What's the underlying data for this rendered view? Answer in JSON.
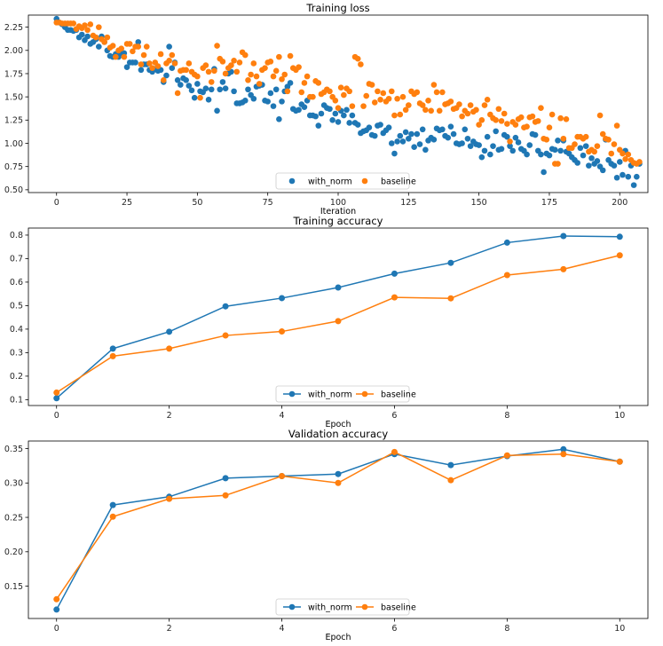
{
  "colors": {
    "with_norm": "#1f77b4",
    "baseline": "#ff7f0e",
    "frame": "#808080"
  },
  "chart_data": [
    {
      "type": "scatter",
      "title": "Training loss",
      "xlabel": "Iteration",
      "ylabel": "",
      "xlim": [
        -10,
        210
      ],
      "ylim": [
        0.47,
        2.38
      ],
      "xticks": [
        0,
        25,
        50,
        75,
        100,
        125,
        150,
        175,
        200
      ],
      "xtick_labels": [
        "0",
        "25",
        "50",
        "75",
        "100",
        "125",
        "150",
        "175",
        "200"
      ],
      "yticks": [
        0.5,
        0.75,
        1.0,
        1.25,
        1.5,
        1.75,
        2.0,
        2.25
      ],
      "ytick_labels": [
        "0.50",
        "0.75",
        "1.00",
        "1.25",
        "1.50",
        "1.75",
        "2.00",
        "2.25"
      ],
      "legend": {
        "placement": "lower-center",
        "entries": [
          "with_norm",
          "baseline"
        ]
      },
      "series": [
        {
          "name": "with_norm",
          "x_start": 0,
          "x_step": 1,
          "values": [
            2.34,
            2.3,
            2.28,
            2.25,
            2.22,
            2.22,
            2.21,
            2.22,
            2.14,
            2.17,
            2.11,
            2.15,
            2.07,
            2.09,
            2.12,
            2.04,
            2.15,
            2.09,
            2.0,
            1.94,
            1.93,
            1.96,
            1.93,
            1.97,
            1.97,
            1.82,
            1.87,
            1.87,
            1.87,
            2.09,
            1.79,
            1.85,
            1.85,
            1.79,
            1.77,
            1.8,
            1.78,
            1.79,
            1.66,
            1.73,
            2.04,
            1.81,
            1.87,
            1.68,
            1.63,
            1.7,
            1.68,
            1.62,
            1.57,
            1.49,
            1.64,
            1.56,
            1.55,
            1.59,
            1.47,
            1.58,
            1.8,
            1.35,
            1.58,
            1.66,
            1.59,
            1.75,
            1.77,
            1.56,
            1.43,
            1.43,
            1.44,
            1.46,
            1.58,
            1.52,
            1.48,
            1.61,
            1.62,
            1.63,
            1.46,
            1.45,
            1.54,
            1.4,
            1.58,
            1.26,
            1.45,
            1.56,
            1.61,
            1.65,
            1.37,
            1.35,
            1.36,
            1.42,
            1.39,
            1.46,
            1.3,
            1.3,
            1.29,
            1.19,
            1.32,
            1.41,
            1.38,
            1.37,
            1.25,
            1.32,
            1.23,
            1.35,
            1.3,
            1.36,
            1.22,
            1.3,
            1.22,
            1.2,
            1.11,
            1.13,
            1.14,
            1.17,
            1.09,
            1.08,
            1.19,
            1.2,
            1.11,
            1.14,
            1.17,
            1.0,
            0.89,
            1.02,
            1.08,
            1.02,
            1.12,
            1.05,
            1.1,
            0.96,
            1.1,
            0.99,
            1.15,
            0.93,
            1.03,
            1.06,
            1.04,
            1.16,
            1.14,
            1.15,
            1.08,
            1.06,
            1.18,
            1.1,
            1.0,
            0.99,
            1.0,
            1.15,
            1.05,
            0.97,
            1.02,
            0.99,
            0.98,
            0.85,
            0.92,
            1.07,
            0.88,
            0.97,
            1.13,
            0.93,
            0.94,
            1.09,
            1.07,
            0.97,
            0.92,
            1.06,
            1.01,
            0.94,
            0.92,
            0.88,
            0.98,
            1.1,
            1.09,
            0.92,
            0.88,
            0.69,
            0.89,
            0.87,
            0.94,
            0.93,
            1.03,
            0.92,
            1.03,
            0.91,
            0.89,
            0.85,
            0.82,
            0.79,
            0.95,
            0.87,
            0.97,
            0.76,
            0.84,
            0.78,
            0.81,
            0.75,
            0.71,
            1.04,
            0.82,
            0.78,
            0.76,
            0.63,
            0.8,
            0.66,
            0.92,
            0.64,
            0.76,
            0.55,
            0.64,
            0.78
          ]
        },
        {
          "name": "baseline",
          "x_start": 0,
          "x_step": 1,
          "values": [
            2.3,
            2.3,
            2.29,
            2.29,
            2.29,
            2.29,
            2.29,
            2.23,
            2.26,
            2.24,
            2.27,
            2.22,
            2.28,
            2.16,
            2.14,
            2.25,
            2.12,
            2.09,
            2.14,
            2.03,
            2.05,
            1.93,
            2.0,
            2.02,
            1.93,
            2.07,
            2.07,
            1.99,
            2.04,
            2.04,
            1.85,
            1.95,
            2.04,
            1.86,
            1.81,
            1.87,
            1.83,
            1.96,
            1.68,
            1.86,
            1.89,
            1.95,
            1.86,
            1.54,
            1.78,
            1.79,
            1.79,
            1.86,
            1.77,
            1.74,
            1.72,
            1.49,
            1.81,
            1.84,
            1.77,
            1.66,
            1.78,
            2.05,
            1.91,
            1.88,
            1.75,
            1.81,
            1.84,
            1.89,
            1.77,
            1.87,
            1.98,
            1.95,
            1.68,
            1.74,
            1.86,
            1.72,
            1.64,
            1.79,
            1.81,
            1.87,
            1.88,
            1.72,
            1.78,
            1.93,
            1.69,
            1.74,
            1.56,
            1.94,
            1.81,
            1.79,
            1.82,
            1.55,
            1.65,
            1.72,
            1.5,
            1.5,
            1.67,
            1.65,
            1.53,
            1.55,
            1.58,
            1.56,
            1.5,
            1.46,
            1.38,
            1.6,
            1.52,
            1.59,
            1.56,
            1.4,
            1.93,
            1.91,
            1.85,
            1.4,
            1.51,
            1.64,
            1.63,
            1.44,
            1.56,
            1.47,
            1.54,
            1.45,
            1.48,
            1.56,
            1.3,
            1.48,
            1.31,
            1.5,
            1.36,
            1.41,
            1.56,
            1.53,
            1.55,
            1.43,
            1.41,
            1.36,
            1.46,
            1.35,
            1.63,
            1.55,
            1.35,
            1.55,
            1.42,
            1.43,
            1.45,
            1.37,
            1.38,
            1.42,
            1.29,
            1.35,
            1.32,
            1.41,
            1.34,
            1.36,
            1.2,
            1.25,
            1.41,
            1.47,
            1.31,
            1.27,
            1.25,
            1.37,
            1.24,
            1.32,
            1.21,
            1.02,
            1.23,
            1.2,
            1.26,
            1.28,
            1.17,
            1.18,
            1.28,
            1.29,
            1.23,
            1.24,
            1.38,
            1.05,
            1.04,
            1.17,
            1.31,
            0.78,
            0.78,
            1.27,
            1.05,
            1.26,
            0.95,
            0.95,
            0.99,
            1.07,
            1.07,
            1.05,
            1.07,
            0.91,
            0.93,
            0.91,
            0.97,
            1.3,
            1.1,
            1.05,
            1.04,
            0.89,
            0.99,
            1.19,
            0.93,
            0.89,
            0.83,
            0.88,
            0.82,
            0.79,
            0.78,
            0.8
          ]
        }
      ]
    },
    {
      "type": "line",
      "title": "Training accuracy",
      "xlabel": "Epoch",
      "ylabel": "",
      "xlim": [
        -0.5,
        10.5
      ],
      "ylim": [
        0.075,
        0.83
      ],
      "x": [
        0,
        1,
        2,
        3,
        4,
        5,
        6,
        7,
        8,
        9,
        10
      ],
      "xticks": [
        0,
        2,
        4,
        6,
        8,
        10
      ],
      "xtick_labels": [
        "0",
        "2",
        "4",
        "6",
        "8",
        "10"
      ],
      "yticks": [
        0.1,
        0.2,
        0.3,
        0.4,
        0.5,
        0.6,
        0.7,
        0.8
      ],
      "ytick_labels": [
        "0.1",
        "0.2",
        "0.3",
        "0.4",
        "0.5",
        "0.6",
        "0.7",
        "0.8"
      ],
      "legend": {
        "placement": "lower-center",
        "entries": [
          "with_norm",
          "baseline"
        ]
      },
      "series": [
        {
          "name": "with_norm",
          "values": [
            0.106,
            0.317,
            0.389,
            0.497,
            0.532,
            0.577,
            0.636,
            0.682,
            0.768,
            0.796,
            0.793
          ]
        },
        {
          "name": "baseline",
          "values": [
            0.13,
            0.285,
            0.317,
            0.373,
            0.39,
            0.434,
            0.535,
            0.531,
            0.63,
            0.655,
            0.714
          ]
        }
      ]
    },
    {
      "type": "line",
      "title": "Validation accuracy",
      "xlabel": "Epoch",
      "ylabel": "",
      "xlim": [
        -0.5,
        10.5
      ],
      "ylim": [
        0.103,
        0.361
      ],
      "x": [
        0,
        1,
        2,
        3,
        4,
        5,
        6,
        7,
        8,
        9,
        10
      ],
      "xticks": [
        0,
        2,
        4,
        6,
        8,
        10
      ],
      "xtick_labels": [
        "0",
        "2",
        "4",
        "6",
        "8",
        "10"
      ],
      "yticks": [
        0.15,
        0.2,
        0.25,
        0.3,
        0.35
      ],
      "ytick_labels": [
        "0.15",
        "0.20",
        "0.25",
        "0.30",
        "0.35"
      ],
      "legend": {
        "placement": "lower-center",
        "entries": [
          "with_norm",
          "baseline"
        ]
      },
      "series": [
        {
          "name": "with_norm",
          "values": [
            0.116,
            0.268,
            0.28,
            0.307,
            0.31,
            0.313,
            0.342,
            0.326,
            0.339,
            0.349,
            0.331
          ]
        },
        {
          "name": "baseline",
          "values": [
            0.131,
            0.251,
            0.277,
            0.282,
            0.31,
            0.3,
            0.345,
            0.304,
            0.34,
            0.342,
            0.331
          ]
        }
      ]
    }
  ]
}
